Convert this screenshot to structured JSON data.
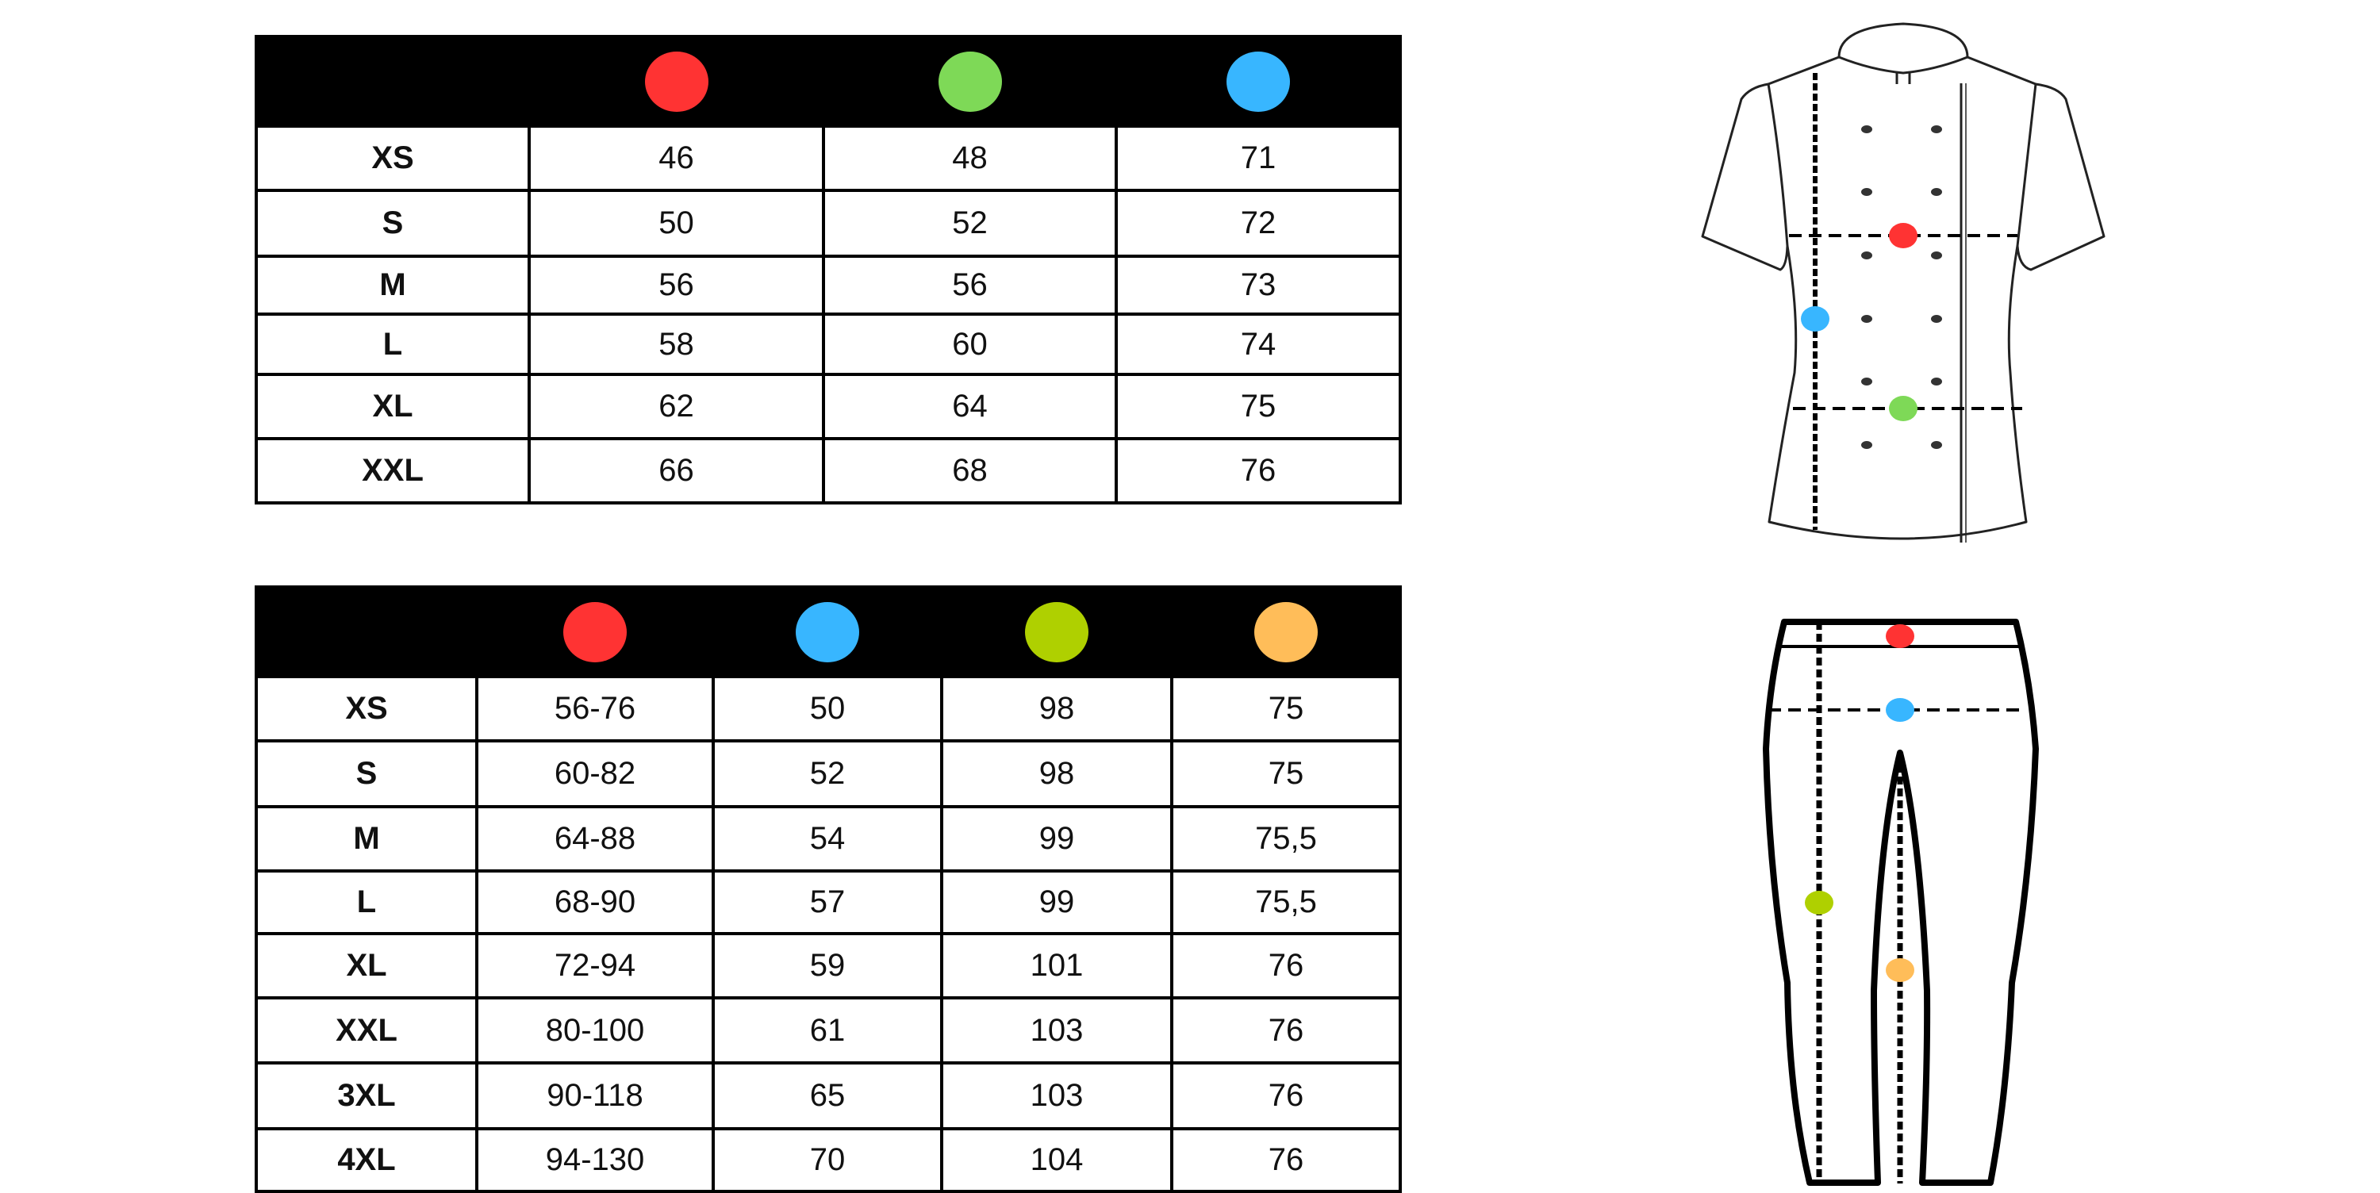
{
  "colors": {
    "red": "#ff3333",
    "green": "#7ed957",
    "blue": "#38b6ff",
    "lime": "#afd000",
    "orange": "#ffbd59"
  },
  "jacket_table": {
    "columns": [
      "red",
      "green",
      "blue"
    ],
    "rows": [
      {
        "size": "XS",
        "values": [
          "46",
          "48",
          "71"
        ]
      },
      {
        "size": "S",
        "values": [
          "50",
          "52",
          "72"
        ]
      },
      {
        "size": "M",
        "values": [
          "56",
          "56",
          "73"
        ]
      },
      {
        "size": "L",
        "values": [
          "58",
          "60",
          "74"
        ]
      },
      {
        "size": "XL",
        "values": [
          "62",
          "64",
          "75"
        ]
      },
      {
        "size": "XXL",
        "values": [
          "66",
          "68",
          "76"
        ]
      }
    ]
  },
  "pants_table": {
    "columns": [
      "red",
      "blue",
      "lime",
      "orange"
    ],
    "rows": [
      {
        "size": "XS",
        "values": [
          "56-76",
          "50",
          "98",
          "75"
        ]
      },
      {
        "size": "S",
        "values": [
          "60-82",
          "52",
          "98",
          "75"
        ]
      },
      {
        "size": "M",
        "values": [
          "64-88",
          "54",
          "99",
          "75,5"
        ]
      },
      {
        "size": "L",
        "values": [
          "68-90",
          "57",
          "99",
          "75,5"
        ]
      },
      {
        "size": "XL",
        "values": [
          "72-94",
          "59",
          "101",
          "76"
        ]
      },
      {
        "size": "XXL",
        "values": [
          "80-100",
          "61",
          "103",
          "76"
        ]
      },
      {
        "size": "3XL",
        "values": [
          "90-118",
          "65",
          "103",
          "76"
        ]
      },
      {
        "size": "4XL",
        "values": [
          "94-130",
          "70",
          "104",
          "76"
        ]
      }
    ]
  },
  "illustrations": {
    "jacket": "chef-jacket-diagram",
    "pants": "pants-diagram"
  }
}
